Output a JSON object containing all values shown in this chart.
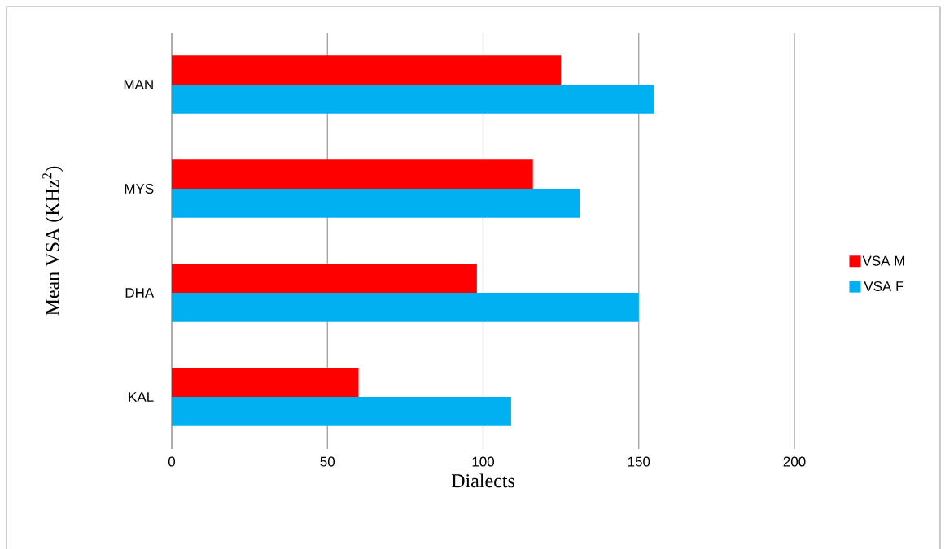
{
  "chart_data": {
    "type": "bar",
    "orientation": "horizontal",
    "xlabel": "Dialects",
    "ylabel": "Mean VSA (KHz$^{2}$)",
    "categories": [
      "MAN",
      "MYS",
      "DHA",
      "KAL"
    ],
    "series": [
      {
        "name": "VSA M",
        "color": "#ff0000",
        "values": [
          125,
          116,
          98,
          60
        ]
      },
      {
        "name": "VSA F",
        "color": "#00b0f0",
        "values": [
          155,
          131,
          150,
          109
        ]
      }
    ],
    "xlim": [
      0,
      200
    ],
    "xticks": [
      0,
      50,
      100,
      150,
      200
    ],
    "grid": "x",
    "legend": "right"
  }
}
